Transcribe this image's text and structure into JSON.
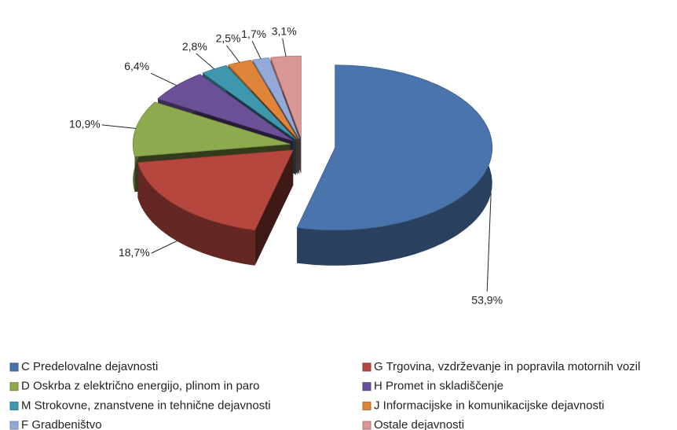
{
  "chart_data": {
    "type": "pie",
    "categories": [
      "C Predelovalne dejavnosti",
      "G Trgovina, vzdrževanje in popravila motornih vozil",
      "D Oskrba z električno energijo, plinom in paro",
      "H Promet in skladiščenje",
      "M Strokovne, znanstvene in tehnične dejavnosti",
      "J Informacijske in komunikacijske dejavnosti",
      "F Gradbeništvo",
      "Ostale dejavnosti"
    ],
    "values": [
      53.9,
      18.7,
      10.9,
      6.4,
      2.8,
      2.5,
      1.7,
      3.1
    ],
    "value_labels": [
      "53,9%",
      "18,7%",
      "10,9%",
      "6,4%",
      "2,8%",
      "2,5%",
      "1,7%",
      "3,1%"
    ],
    "colors": [
      "#4a74ac",
      "#b5473f",
      "#8eaa4f",
      "#6c5097",
      "#3f97ad",
      "#e0843a",
      "#93aad8",
      "#d99694"
    ]
  }
}
